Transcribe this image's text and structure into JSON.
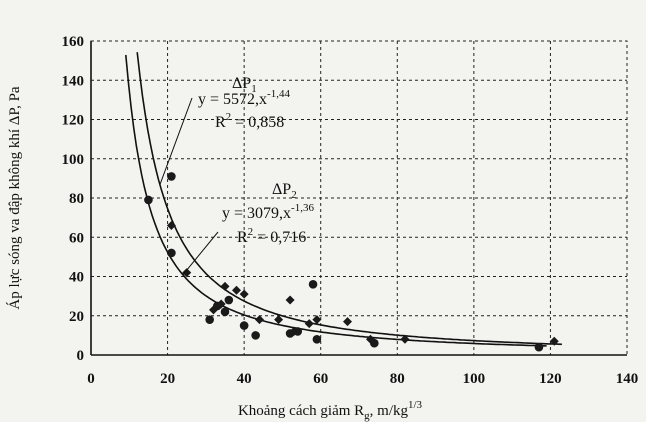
{
  "chart_data": {
    "type": "scatter",
    "xlabel": "Khoảng cách giảm R",
    "xlabel_sub": "g",
    "xlabel_unit": ", m/kg",
    "xlabel_unit_sup": "1/3",
    "ylabel": "Áp lực sóng va đập không khí ΔP, Pa",
    "xlim": [
      0,
      140
    ],
    "ylim": [
      0,
      160
    ],
    "xticks": [
      0,
      20,
      40,
      60,
      80,
      100,
      120,
      140
    ],
    "yticks": [
      0,
      20,
      40,
      60,
      80,
      100,
      120,
      140,
      160
    ],
    "grid": true,
    "series": [
      {
        "name": "ΔP1",
        "name_main": "ΔP",
        "name_sub": "1",
        "marker": "diamond",
        "points": [
          [
            21,
            66
          ],
          [
            25,
            42
          ],
          [
            32,
            23
          ],
          [
            34,
            26
          ],
          [
            35,
            35
          ],
          [
            38,
            33
          ],
          [
            40,
            31
          ],
          [
            40,
            15
          ],
          [
            44,
            18
          ],
          [
            49,
            18
          ],
          [
            52,
            28
          ],
          [
            53,
            12
          ],
          [
            57,
            16
          ],
          [
            59,
            18
          ],
          [
            67,
            17
          ],
          [
            73,
            8
          ],
          [
            82,
            8
          ],
          [
            121,
            7
          ]
        ],
        "fit": {
          "a": 5572,
          "b": -1.44
        },
        "eq_main": "y = 5572,x",
        "eq_exp": "-1,44",
        "r2_main": "R",
        "r2_exp": "2",
        "r2_value": " = 0,858"
      },
      {
        "name": "ΔP2",
        "name_main": "ΔP",
        "name_sub": "2",
        "marker": "circle",
        "points": [
          [
            15,
            79
          ],
          [
            21,
            91
          ],
          [
            21,
            52
          ],
          [
            31,
            18
          ],
          [
            33,
            25
          ],
          [
            35,
            22
          ],
          [
            36,
            28
          ],
          [
            40,
            15
          ],
          [
            43,
            10
          ],
          [
            52,
            11
          ],
          [
            54,
            12
          ],
          [
            58,
            36
          ],
          [
            59,
            8
          ],
          [
            74,
            6
          ],
          [
            117,
            4
          ]
        ],
        "fit": {
          "a": 3079,
          "b": -1.36
        },
        "eq_main": "y = 3079,x",
        "eq_exp": "-1,36",
        "r2_main": "R",
        "r2_exp": "2",
        "r2_value": " = 0,716"
      }
    ]
  }
}
